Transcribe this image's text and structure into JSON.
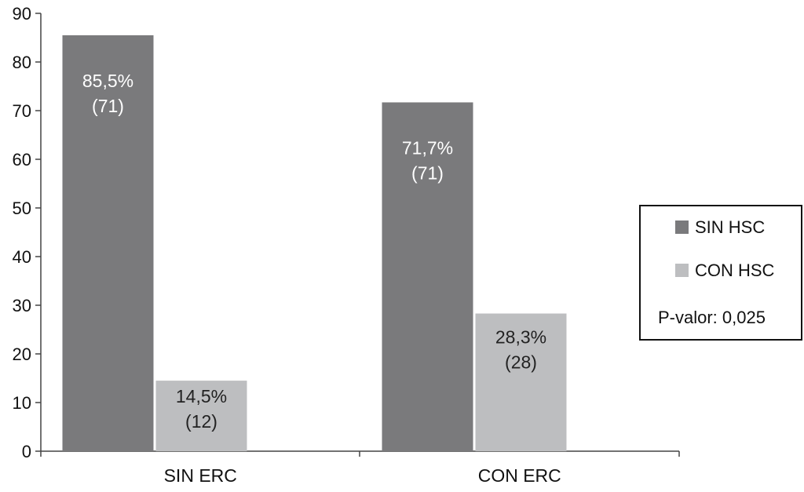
{
  "chart_data": {
    "type": "bar",
    "title": "",
    "xlabel": "",
    "ylabel": "",
    "ylim": [
      0,
      90
    ],
    "yticks": [
      0,
      10,
      20,
      30,
      40,
      50,
      60,
      70,
      80,
      90
    ],
    "grid": false,
    "categories": [
      "SIN ERC",
      "CON ERC"
    ],
    "series": [
      {
        "name": "SIN HSC",
        "color": "#7a7a7c",
        "values": [
          85.5,
          71.7
        ],
        "labels": [
          [
            "85,5%",
            "(71)"
          ],
          [
            "71,7%",
            "(71)"
          ]
        ],
        "label_color": "#ffffff"
      },
      {
        "name": "CON HSC",
        "color": "#bdbec0",
        "values": [
          14.5,
          28.3
        ],
        "labels": [
          [
            "14,5%",
            "(12)"
          ],
          [
            "28,3%",
            "(28)"
          ]
        ],
        "label_color": "#222222"
      }
    ],
    "legend": {
      "position": "right",
      "note": "P-valor: 0,025"
    }
  }
}
